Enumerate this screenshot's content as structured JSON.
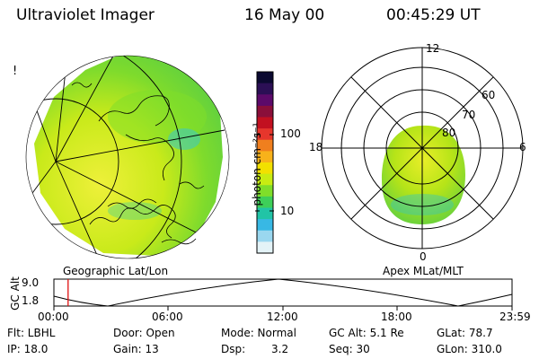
{
  "header": {
    "instrument": "Ultraviolet Imager",
    "date": "16 May 00",
    "time": "00:45:29 UT"
  },
  "left_panel": {
    "caption": "Geographic Lat/Lon",
    "edge_mark": "!"
  },
  "right_panel": {
    "caption": "Apex MLat/MLT",
    "mlt_labels": {
      "top": "12",
      "left": "18",
      "right": "6",
      "bottom": "0"
    },
    "lat_labels": [
      "60",
      "70",
      "80"
    ]
  },
  "colorbar": {
    "unit_label": "photon cm⁻²s⁻¹",
    "ticks": [
      "100",
      "10"
    ],
    "colors": [
      "#0b0930",
      "#2b0f55",
      "#5c0a6a",
      "#8a0f3a",
      "#c21020",
      "#e6362c",
      "#f07f1e",
      "#f8b21a",
      "#f2e000",
      "#c8ec12",
      "#7fde2a",
      "#3ecf59",
      "#21c4a6",
      "#38b8e4",
      "#9ad7ef",
      "#e4f3f7"
    ]
  },
  "timeline": {
    "axis_label": "GC Alt",
    "y_ticks": [
      "9.0",
      "1.8"
    ],
    "x_ticks": [
      "00:00",
      "06:00",
      "12:00",
      "18:00",
      "23:59"
    ],
    "current_time_fraction": 0.031,
    "marker_color": "#e01010"
  },
  "info": {
    "filter": "Flt: LBHL",
    "door": "Door: Open",
    "mode": "Mode: Normal",
    "gc_alt": "GC Alt: 5.1 Re",
    "glat": "GLat: 78.7",
    "ip": "IP: 18.0",
    "gain": "Gain: 13",
    "dsp_label": "Dsp:",
    "dsp_value": "3.2",
    "seq": "Seq: 30",
    "glon": "GLon: 310.0"
  }
}
